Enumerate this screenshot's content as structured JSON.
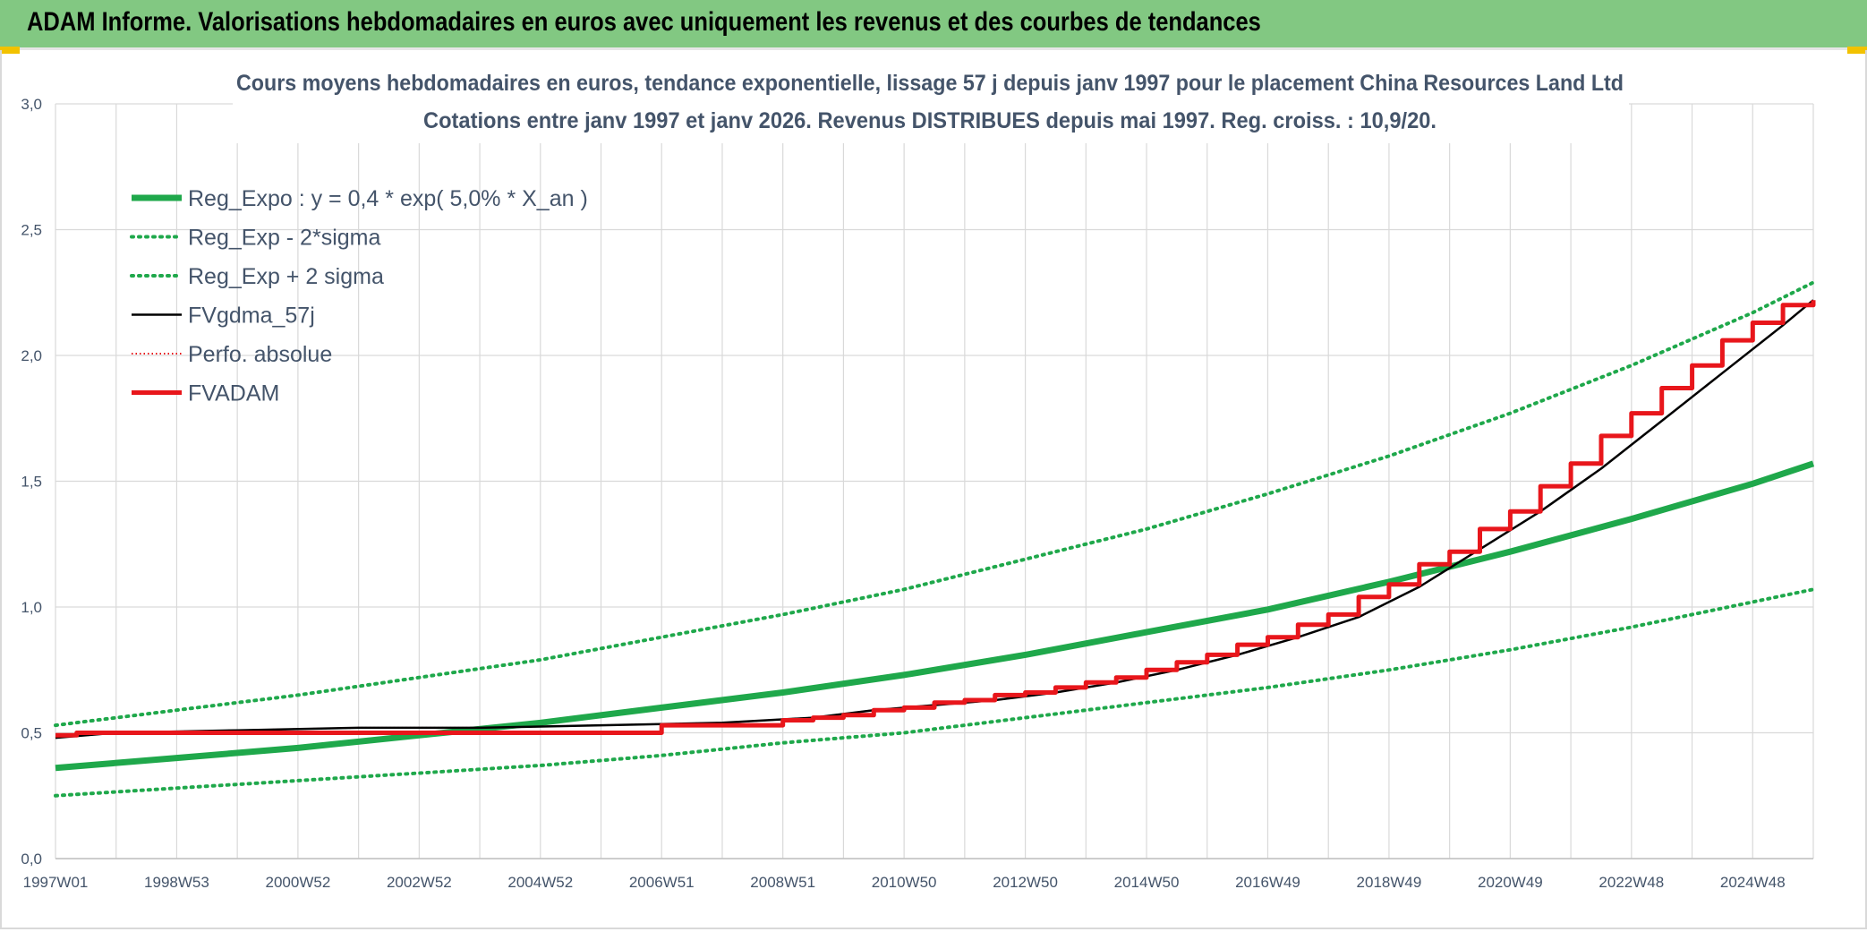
{
  "header": {
    "title": "ADAM Informe. Valorisations hebdomadaires en euros avec uniquement les revenus et des courbes de tendances"
  },
  "colors": {
    "header_bg": "#82c882",
    "green": "#1fa84b",
    "red": "#e8161b",
    "black": "#000000",
    "grid": "#d9d9d9",
    "text": "#44546a"
  },
  "chart_data": {
    "type": "line",
    "title": "Cours moyens hebdomadaires en euros, tendance exponentielle, lissage 57 j depuis janv 1997 pour le placement China Resources Land Ltd",
    "subtitle": "Cotations entre janv 1997 et janv 2026. Revenus DISTRIBUES depuis mai 1997. Reg. croiss. : 10,9/20.",
    "xlabel": "",
    "ylabel": "",
    "x_range": [
      1997.0,
      2026.0
    ],
    "ylim": [
      0,
      3.0
    ],
    "y_ticks": [
      "0,0",
      "0,5",
      "1,0",
      "1,5",
      "2,0",
      "2,5",
      "3,0"
    ],
    "x_tick_labels": [
      "1997W01",
      "1998W53",
      "2000W52",
      "2002W52",
      "2004W52",
      "2006W51",
      "2008W51",
      "2010W50",
      "2012W50",
      "2014W50",
      "2016W49",
      "2018W49",
      "2020W49",
      "2022W48",
      "2024W48"
    ],
    "grid": true,
    "legend_position": "top-left",
    "series": [
      {
        "name": "Reg_Expo : y = 0,4 * exp( 5,0% *  X_an )",
        "style": "green-thick",
        "x": [
          1997.0,
          1999.0,
          2001.0,
          2003.0,
          2005.0,
          2007.0,
          2009.0,
          2011.0,
          2013.0,
          2015.0,
          2017.0,
          2019.0,
          2021.0,
          2023.0,
          2025.0,
          2026.0
        ],
        "y": [
          0.36,
          0.4,
          0.44,
          0.49,
          0.54,
          0.6,
          0.66,
          0.73,
          0.81,
          0.9,
          0.99,
          1.1,
          1.22,
          1.35,
          1.49,
          1.57
        ]
      },
      {
        "name": "Reg_Exp - 2*sigma",
        "style": "green-dotted",
        "x": [
          1997.0,
          1999.0,
          2001.0,
          2003.0,
          2005.0,
          2007.0,
          2009.0,
          2011.0,
          2013.0,
          2015.0,
          2017.0,
          2019.0,
          2021.0,
          2023.0,
          2025.0,
          2026.0
        ],
        "y": [
          0.25,
          0.28,
          0.31,
          0.34,
          0.37,
          0.41,
          0.46,
          0.5,
          0.56,
          0.62,
          0.68,
          0.75,
          0.83,
          0.92,
          1.02,
          1.07
        ]
      },
      {
        "name": "Reg_Exp + 2 sigma",
        "style": "green-dotted",
        "x": [
          1997.0,
          1999.0,
          2001.0,
          2003.0,
          2005.0,
          2007.0,
          2009.0,
          2011.0,
          2013.0,
          2015.0,
          2017.0,
          2019.0,
          2021.0,
          2023.0,
          2025.0,
          2026.0
        ],
        "y": [
          0.53,
          0.59,
          0.65,
          0.72,
          0.79,
          0.88,
          0.97,
          1.07,
          1.19,
          1.31,
          1.45,
          1.6,
          1.77,
          1.96,
          2.17,
          2.29
        ]
      },
      {
        "name": "FVgdma_57j",
        "style": "black-thin",
        "x": [
          1997.0,
          1998.0,
          2000.0,
          2002.0,
          2004.0,
          2006.0,
          2008.0,
          2009.5,
          2010.5,
          2011.5,
          2012.5,
          2013.5,
          2014.5,
          2015.5,
          2016.5,
          2017.5,
          2018.5,
          2019.5,
          2020.5,
          2021.5,
          2022.5,
          2023.5,
          2024.5,
          2025.5,
          2026.0
        ],
        "y": [
          0.48,
          0.5,
          0.51,
          0.52,
          0.52,
          0.53,
          0.54,
          0.56,
          0.59,
          0.61,
          0.63,
          0.66,
          0.7,
          0.75,
          0.81,
          0.88,
          0.96,
          1.08,
          1.23,
          1.38,
          1.55,
          1.74,
          1.93,
          2.12,
          2.22
        ]
      },
      {
        "name": "Perfo. absolue",
        "style": "red-dotted",
        "x": [
          1997.0,
          1998.0,
          2000.0,
          2002.0,
          2004.0,
          2006.0,
          2008.0,
          2009.5,
          2010.5,
          2011.5,
          2012.5,
          2013.5,
          2014.5,
          2015.5,
          2016.5,
          2017.5,
          2018.5,
          2019.5,
          2020.5,
          2021.5,
          2022.5,
          2023.5,
          2024.5,
          2025.5,
          2026.0
        ],
        "y": [
          0.48,
          0.5,
          0.51,
          0.52,
          0.52,
          0.53,
          0.54,
          0.56,
          0.59,
          0.61,
          0.63,
          0.66,
          0.7,
          0.75,
          0.81,
          0.88,
          0.96,
          1.08,
          1.23,
          1.38,
          1.55,
          1.74,
          1.93,
          2.12,
          2.22
        ]
      },
      {
        "name": "FVADAM",
        "style": "red-thick-step",
        "x": [
          1997.0,
          1997.35,
          2007.0,
          2009.0,
          2009.5,
          2010.0,
          2010.5,
          2011.0,
          2011.5,
          2012.0,
          2012.5,
          2013.0,
          2013.5,
          2014.0,
          2014.5,
          2015.0,
          2015.5,
          2016.0,
          2016.5,
          2017.0,
          2017.5,
          2018.0,
          2018.5,
          2019.0,
          2019.5,
          2020.0,
          2020.5,
          2021.0,
          2021.5,
          2022.0,
          2022.5,
          2023.0,
          2023.5,
          2024.0,
          2024.5,
          2025.0,
          2025.5,
          2026.0
        ],
        "y": [
          0.49,
          0.5,
          0.53,
          0.55,
          0.56,
          0.57,
          0.59,
          0.6,
          0.62,
          0.63,
          0.65,
          0.66,
          0.68,
          0.7,
          0.72,
          0.75,
          0.78,
          0.81,
          0.85,
          0.88,
          0.93,
          0.97,
          1.04,
          1.09,
          1.17,
          1.22,
          1.31,
          1.38,
          1.48,
          1.57,
          1.68,
          1.77,
          1.87,
          1.96,
          2.06,
          2.13,
          2.2,
          2.22
        ]
      }
    ]
  }
}
